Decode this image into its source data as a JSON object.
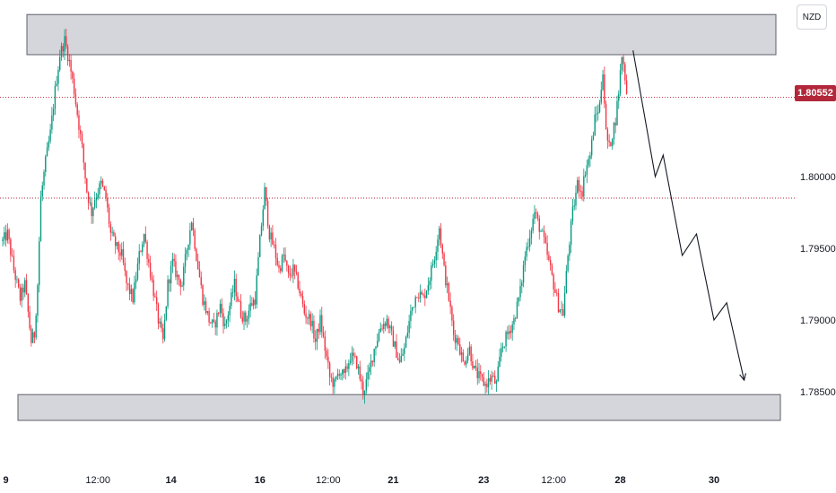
{
  "header": {
    "currency": "NZD"
  },
  "price_tag": {
    "value": "1.80552"
  },
  "colors": {
    "up": "#089981",
    "down": "#f23645",
    "current": "#b2283a",
    "zone": "#b2b5be"
  },
  "chart_data": {
    "type": "candlestick",
    "title": "",
    "y_axis": {
      "position": "right",
      "ticks": [
        1.785,
        1.79,
        1.795,
        1.8
      ],
      "tick_labels": [
        "1.78500",
        "1.79000",
        "1.79500",
        "1.80000"
      ],
      "range": [
        1.7775,
        1.8265
      ]
    },
    "x_axis": {
      "ticks": [
        {
          "label": "9",
          "bold": true,
          "i": 2
        },
        {
          "label": "12:00",
          "bold": false,
          "i": 60
        },
        {
          "label": "14",
          "bold": true,
          "i": 106
        },
        {
          "label": "16",
          "bold": true,
          "i": 162
        },
        {
          "label": "12:00",
          "bold": false,
          "i": 205
        },
        {
          "label": "21",
          "bold": true,
          "i": 246
        },
        {
          "label": "23",
          "bold": true,
          "i": 303
        },
        {
          "label": "12:00",
          "bold": false,
          "i": 347
        },
        {
          "label": "28",
          "bold": true,
          "i": 389
        },
        {
          "label": "30",
          "bold": true,
          "i": 448
        }
      ]
    },
    "current_price": 1.80552,
    "dotted_line": 1.7985,
    "zones": [
      {
        "name": "resistance",
        "low": 1.8085,
        "high": 1.8113
      },
      {
        "name": "support",
        "low": 1.783,
        "high": 1.7848
      }
    ],
    "projection_path": [
      [
        397,
        1.8088
      ],
      [
        411,
        1.8
      ],
      [
        416,
        1.8015
      ],
      [
        428,
        1.7945
      ],
      [
        437,
        1.796
      ],
      [
        448,
        1.79
      ],
      [
        456,
        1.7912
      ],
      [
        467,
        1.7858
      ]
    ],
    "anchors": [
      [
        0,
        1.7955
      ],
      [
        3,
        1.796
      ],
      [
        7,
        1.7935
      ],
      [
        11,
        1.7915
      ],
      [
        14,
        1.7925
      ],
      [
        18,
        1.7885
      ],
      [
        20,
        1.789
      ],
      [
        22,
        1.7925
      ],
      [
        24,
        1.7985
      ],
      [
        27,
        1.801
      ],
      [
        30,
        1.803
      ],
      [
        33,
        1.806
      ],
      [
        36,
        1.8085
      ],
      [
        39,
        1.8095
      ],
      [
        42,
        1.808
      ],
      [
        45,
        1.806
      ],
      [
        50,
        1.802
      ],
      [
        53,
        1.799
      ],
      [
        56,
        1.7975
      ],
      [
        58,
        1.7985
      ],
      [
        62,
        1.7995
      ],
      [
        65,
        1.7985
      ],
      [
        68,
        1.796
      ],
      [
        72,
        1.795
      ],
      [
        75,
        1.7945
      ],
      [
        78,
        1.7925
      ],
      [
        82,
        1.7915
      ],
      [
        86,
        1.7945
      ],
      [
        89,
        1.796
      ],
      [
        92,
        1.794
      ],
      [
        95,
        1.792
      ],
      [
        98,
        1.79
      ],
      [
        101,
        1.7885
      ],
      [
        104,
        1.7925
      ],
      [
        107,
        1.794
      ],
      [
        110,
        1.793
      ],
      [
        113,
        1.7925
      ],
      [
        116,
        1.795
      ],
      [
        119,
        1.797
      ],
      [
        122,
        1.7945
      ],
      [
        126,
        1.7915
      ],
      [
        130,
        1.79
      ],
      [
        133,
        1.7895
      ],
      [
        137,
        1.791
      ],
      [
        140,
        1.7895
      ],
      [
        143,
        1.791
      ],
      [
        146,
        1.7925
      ],
      [
        150,
        1.7905
      ],
      [
        153,
        1.79
      ],
      [
        156,
        1.791
      ],
      [
        159,
        1.7915
      ],
      [
        162,
        1.7955
      ],
      [
        165,
        1.799
      ],
      [
        168,
        1.796
      ],
      [
        171,
        1.795
      ],
      [
        174,
        1.7935
      ],
      [
        177,
        1.7945
      ],
      [
        180,
        1.793
      ],
      [
        183,
        1.7935
      ],
      [
        186,
        1.7925
      ],
      [
        190,
        1.7905
      ],
      [
        194,
        1.79
      ],
      [
        197,
        1.7885
      ],
      [
        200,
        1.79
      ],
      [
        203,
        1.788
      ],
      [
        206,
        1.786
      ],
      [
        209,
        1.7855
      ],
      [
        212,
        1.7865
      ],
      [
        215,
        1.786
      ],
      [
        219,
        1.7875
      ],
      [
        223,
        1.787
      ],
      [
        227,
        1.785
      ],
      [
        230,
        1.786
      ],
      [
        234,
        1.788
      ],
      [
        238,
        1.7895
      ],
      [
        242,
        1.79
      ],
      [
        246,
        1.7885
      ],
      [
        250,
        1.787
      ],
      [
        253,
        1.788
      ],
      [
        257,
        1.7905
      ],
      [
        261,
        1.792
      ],
      [
        265,
        1.7915
      ],
      [
        269,
        1.793
      ],
      [
        272,
        1.7945
      ],
      [
        275,
        1.7965
      ],
      [
        278,
        1.7935
      ],
      [
        281,
        1.7915
      ],
      [
        284,
        1.789
      ],
      [
        287,
        1.7885
      ],
      [
        290,
        1.787
      ],
      [
        294,
        1.788
      ],
      [
        297,
        1.7865
      ],
      [
        300,
        1.786
      ],
      [
        304,
        1.7855
      ],
      [
        308,
        1.786
      ],
      [
        311,
        1.7855
      ],
      [
        314,
        1.788
      ],
      [
        318,
        1.789
      ],
      [
        322,
        1.79
      ],
      [
        326,
        1.792
      ],
      [
        329,
        1.7945
      ],
      [
        332,
        1.796
      ],
      [
        335,
        1.7975
      ],
      [
        338,
        1.7965
      ],
      [
        341,
        1.7955
      ],
      [
        344,
        1.794
      ],
      [
        347,
        1.7925
      ],
      [
        350,
        1.791
      ],
      [
        353,
        1.7905
      ],
      [
        356,
        1.7945
      ],
      [
        359,
        1.7975
      ],
      [
        362,
        1.7995
      ],
      [
        365,
        1.799
      ],
      [
        367,
        1.8005
      ],
      [
        370,
        1.8015
      ],
      [
        373,
        1.804
      ],
      [
        376,
        1.805
      ],
      [
        378,
        1.8075
      ],
      [
        380,
        1.803
      ],
      [
        382,
        1.802
      ],
      [
        384,
        1.803
      ],
      [
        386,
        1.804
      ],
      [
        388,
        1.806
      ],
      [
        390,
        1.8085
      ],
      [
        392,
        1.807
      ],
      [
        393,
        1.8058
      ]
    ]
  }
}
